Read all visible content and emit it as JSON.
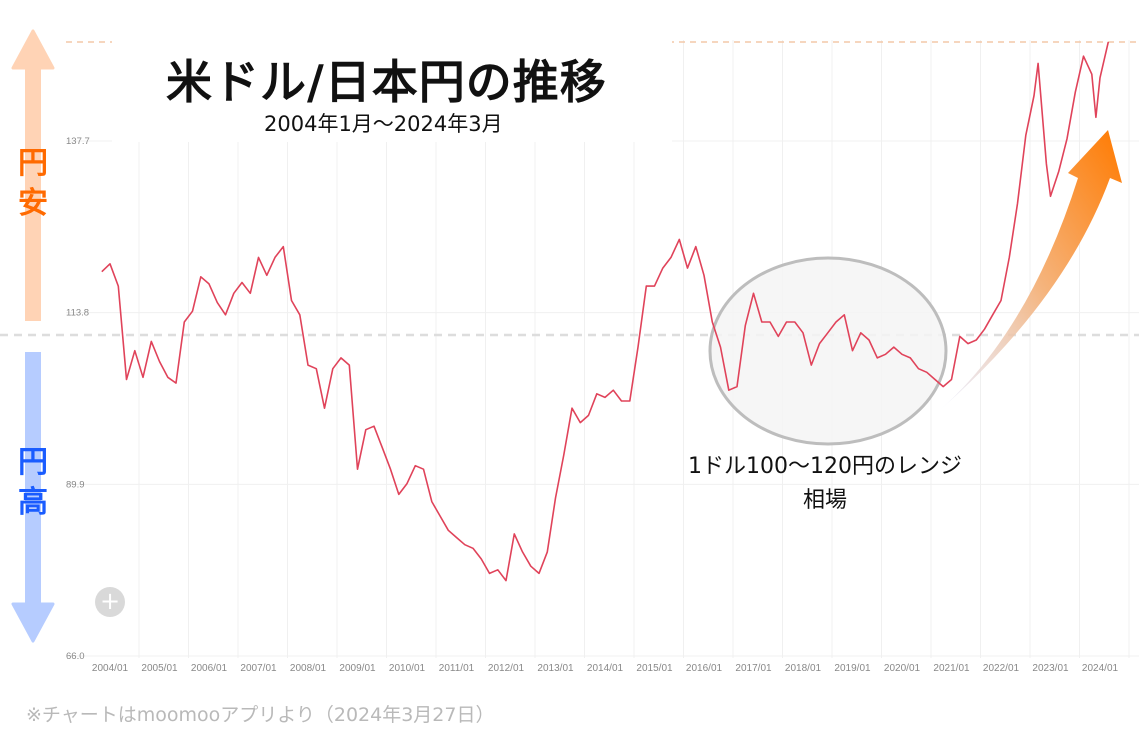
{
  "header": {
    "title": "米ドル/日本円の推移",
    "subtitle": "2004年1月〜2024年3月"
  },
  "side_arrows": {
    "up": {
      "label_1": "円",
      "label_2": "安",
      "color": "#ff6a00",
      "arrow_color": "#ffd3b5"
    },
    "down": {
      "label_1": "円",
      "label_2": "高",
      "color": "#1a5cff",
      "arrow_color": "#b6ccff"
    }
  },
  "annotation": {
    "range_line_1": "1ドル100〜120円のレンジ",
    "range_line_2": "相場"
  },
  "footer": {
    "note": "※チャートはmoomooアプリより（2024年3月27日）"
  },
  "controls": {
    "zoom_button": "+"
  },
  "colors": {
    "line": "#e0435a",
    "grid": "#f0f0f0",
    "axis_text": "#888888",
    "upper_dashed": "#f3c8a8",
    "mid_dashed": "#dddddd",
    "ellipse_stroke": "#bdbdbd",
    "ellipse_fill": "#f5f5f5",
    "trend_arrow_start": "#dfe6ff",
    "trend_arrow_end": "#ff7a00"
  },
  "chart_data": {
    "type": "line",
    "title": "米ドル/日本円の推移",
    "subtitle": "2004年1月〜2024年3月",
    "xlabel": "",
    "ylabel": "",
    "ylim": [
      66.0,
      152.0
    ],
    "y_ticks": [
      66.0,
      89.9,
      113.8,
      137.7
    ],
    "x_ticks": [
      "2004/01",
      "2005/01",
      "2006/01",
      "2007/01",
      "2008/01",
      "2009/01",
      "2010/01",
      "2011/01",
      "2012/01",
      "2013/01",
      "2014/01",
      "2015/01",
      "2016/01",
      "2017/01",
      "2018/01",
      "2019/01",
      "2020/01",
      "2021/01",
      "2022/01",
      "2023/01",
      "2024/01"
    ],
    "grid": true,
    "legend": null,
    "reference_lines": [
      {
        "value": 151.5,
        "style": "dashed",
        "color": "#f3c8a8",
        "note": "upper bound"
      },
      {
        "value": 110.6,
        "style": "dashed",
        "color": "#dddddd",
        "note": "mid reference"
      }
    ],
    "series": [
      {
        "name": "USD/JPY",
        "x": [
          "2003/11",
          "2004/01",
          "2004/03",
          "2004/05",
          "2004/07",
          "2004/09",
          "2004/11",
          "2005/01",
          "2005/03",
          "2005/05",
          "2005/07",
          "2005/09",
          "2005/11",
          "2006/01",
          "2006/03",
          "2006/05",
          "2006/07",
          "2006/09",
          "2006/11",
          "2007/01",
          "2007/03",
          "2007/05",
          "2007/07",
          "2007/09",
          "2007/11",
          "2008/01",
          "2008/03",
          "2008/05",
          "2008/07",
          "2008/09",
          "2008/11",
          "2009/01",
          "2009/03",
          "2009/05",
          "2009/07",
          "2009/09",
          "2009/11",
          "2010/01",
          "2010/03",
          "2010/05",
          "2010/07",
          "2010/09",
          "2010/11",
          "2011/01",
          "2011/03",
          "2011/05",
          "2011/07",
          "2011/09",
          "2011/11",
          "2012/01",
          "2012/03",
          "2012/05",
          "2012/07",
          "2012/09",
          "2012/11",
          "2013/01",
          "2013/03",
          "2013/05",
          "2013/07",
          "2013/09",
          "2013/11",
          "2014/01",
          "2014/03",
          "2014/05",
          "2014/07",
          "2014/09",
          "2014/11",
          "2015/01",
          "2015/03",
          "2015/05",
          "2015/07",
          "2015/09",
          "2015/11",
          "2016/01",
          "2016/03",
          "2016/05",
          "2016/07",
          "2016/09",
          "2016/11",
          "2017/01",
          "2017/03",
          "2017/05",
          "2017/07",
          "2017/09",
          "2017/11",
          "2018/01",
          "2018/03",
          "2018/05",
          "2018/07",
          "2018/09",
          "2018/11",
          "2019/01",
          "2019/03",
          "2019/05",
          "2019/07",
          "2019/09",
          "2019/11",
          "2020/01",
          "2020/03",
          "2020/05",
          "2020/07",
          "2020/09",
          "2020/11",
          "2021/01",
          "2021/03",
          "2021/05",
          "2021/07",
          "2021/09",
          "2021/11",
          "2022/01",
          "2022/03",
          "2022/05",
          "2022/07",
          "2022/09",
          "2022/10",
          "2022/12",
          "2023/01",
          "2023/03",
          "2023/05",
          "2023/07",
          "2023/09",
          "2023/11",
          "2023/12",
          "2024/01",
          "2024/03"
        ],
        "values": [
          119.5,
          120.6,
          117.5,
          104.5,
          108.5,
          104.8,
          109.8,
          107.0,
          104.8,
          104.0,
          112.5,
          114.0,
          118.8,
          117.8,
          115.2,
          113.5,
          116.5,
          118.0,
          116.5,
          121.5,
          119.0,
          121.5,
          123.0,
          115.5,
          113.5,
          106.5,
          106.0,
          100.5,
          106.0,
          107.5,
          106.5,
          92.0,
          97.5,
          98.0,
          95.0,
          92.0,
          88.5,
          90.0,
          92.5,
          92.0,
          87.5,
          85.5,
          83.5,
          82.5,
          81.5,
          81.0,
          79.5,
          77.5,
          78.0,
          76.5,
          83.0,
          80.5,
          78.5,
          77.5,
          80.5,
          88.0,
          94.0,
          100.5,
          98.5,
          99.5,
          102.5,
          102.0,
          103.0,
          101.5,
          101.5,
          109.0,
          117.5,
          117.5,
          120.0,
          121.5,
          124.0,
          120.0,
          123.0,
          119.0,
          112.5,
          109.0,
          103.0,
          103.5,
          112.0,
          116.5,
          112.5,
          112.5,
          110.5,
          112.5,
          112.5,
          111.0,
          106.5,
          109.5,
          111.0,
          112.5,
          113.5,
          108.5,
          111.0,
          110.0,
          107.5,
          108.0,
          109.0,
          108.0,
          107.5,
          106.0,
          105.5,
          104.5,
          103.5,
          104.5,
          110.5,
          109.5,
          110.0,
          111.5,
          113.5,
          115.5,
          121.5,
          129.0,
          138.5,
          144.0,
          148.5,
          134.5,
          130.0,
          133.5,
          138.0,
          144.5,
          149.5,
          147.0,
          141.0,
          146.5,
          151.5
        ]
      }
    ]
  }
}
